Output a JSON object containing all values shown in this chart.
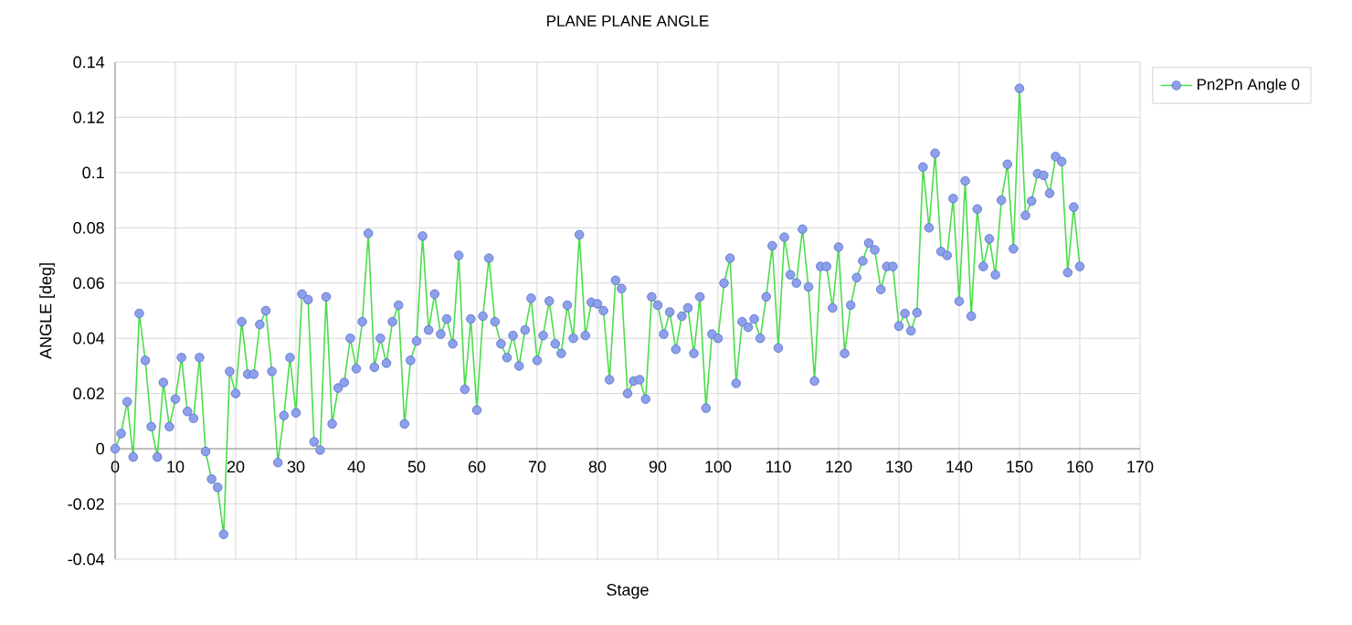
{
  "chart_data": {
    "type": "line",
    "title": "PLANE PLANE ANGLE",
    "xlabel": "Stage",
    "ylabel": "ANGLE [deg]",
    "x": [
      0,
      1,
      2,
      3,
      4,
      5,
      6,
      7,
      8,
      9,
      10,
      11,
      12,
      13,
      14,
      15,
      16,
      17,
      18,
      19,
      20,
      21,
      22,
      23,
      24,
      25,
      26,
      27,
      28,
      29,
      30,
      31,
      32,
      33,
      34,
      35,
      36,
      37,
      38,
      39,
      40,
      41,
      42,
      43,
      44,
      45,
      46,
      47,
      48,
      49,
      50,
      51,
      52,
      53,
      54,
      55,
      56,
      57,
      58,
      59,
      60,
      61,
      62,
      63,
      64,
      65,
      66,
      67,
      68,
      69,
      70,
      71,
      72,
      73,
      74,
      75,
      76,
      77,
      78,
      79,
      80,
      81,
      82,
      83,
      84,
      85,
      86,
      87,
      88,
      89,
      90,
      91,
      92,
      93,
      94,
      95,
      96,
      97,
      98,
      99,
      100,
      101,
      102,
      103,
      104,
      105,
      106,
      107,
      108,
      109,
      110,
      111,
      112,
      113,
      114,
      115,
      116,
      117,
      118,
      119,
      120,
      121,
      122,
      123,
      124,
      125,
      126,
      127,
      128,
      129,
      130,
      131,
      132,
      133,
      134,
      135,
      136,
      137,
      138,
      139,
      140,
      141,
      142,
      143,
      144,
      145,
      146,
      147,
      148,
      149,
      150,
      151,
      152,
      153,
      154,
      155,
      156,
      157,
      158,
      159,
      160
    ],
    "series": [
      {
        "name": "Pn2Pn Angle 0",
        "color": "#4cdc4c",
        "values": [
          0,
          0.0055,
          0.017,
          -0.003,
          0.049,
          0.032,
          0.008,
          -0.003,
          0.024,
          0.008,
          0.018,
          0.033,
          0.0135,
          0.011,
          0.033,
          -0.001,
          -0.011,
          -0.014,
          -0.031,
          0.028,
          0.02,
          0.046,
          0.027,
          0.027,
          0.045,
          0.05,
          0.028,
          -0.005,
          0.012,
          0.033,
          0.013,
          0.056,
          0.054,
          0.0025,
          -0.0005,
          0.055,
          0.009,
          0.022,
          0.024,
          0.04,
          0.029,
          0.046,
          0.078,
          0.0295,
          0.04,
          0.031,
          0.046,
          0.052,
          0.009,
          0.032,
          0.039,
          0.077,
          0.043,
          0.056,
          0.0415,
          0.047,
          0.038,
          0.07,
          0.0215,
          0.047,
          0.014,
          0.048,
          0.069,
          0.046,
          0.038,
          0.033,
          0.041,
          0.03,
          0.043,
          0.0545,
          0.032,
          0.041,
          0.0535,
          0.038,
          0.0345,
          0.052,
          0.04,
          0.0775,
          0.041,
          0.053,
          0.0525,
          0.05,
          0.025,
          0.061,
          0.058,
          0.02,
          0.0245,
          0.025,
          0.018,
          0.055,
          0.052,
          0.0415,
          0.0495,
          0.036,
          0.048,
          0.051,
          0.0345,
          0.055,
          0.0147,
          0.0415,
          0.04,
          0.06,
          0.069,
          0.0237,
          0.046,
          0.044,
          0.047,
          0.04,
          0.055,
          0.0735,
          0.0365,
          0.0766,
          0.063,
          0.06,
          0.0795,
          0.0586,
          0.0245,
          0.066,
          0.066,
          0.051,
          0.073,
          0.0345,
          0.052,
          0.062,
          0.068,
          0.0745,
          0.072,
          0.0577,
          0.066,
          0.066,
          0.0444,
          0.049,
          0.0427,
          0.0493,
          0.102,
          0.08,
          0.107,
          0.0714,
          0.07,
          0.0906,
          0.0534,
          0.097,
          0.048,
          0.0868,
          0.066,
          0.076,
          0.063,
          0.09,
          0.103,
          0.0724,
          0.1305,
          0.0845,
          0.0897,
          0.0996,
          0.099,
          0.0925,
          0.1058,
          0.104,
          0.0638,
          0.0875,
          0.066
        ]
      }
    ],
    "xlim": [
      0,
      170
    ],
    "xticks": [
      0,
      10,
      20,
      30,
      40,
      50,
      60,
      70,
      80,
      90,
      100,
      110,
      120,
      130,
      140,
      150,
      160,
      170
    ],
    "ylim": [
      -0.04,
      0.14
    ],
    "yticks": [
      -0.04,
      -0.02,
      0,
      0.02,
      0.04,
      0.06,
      0.08,
      0.1,
      0.12,
      0.14
    ],
    "grid": true,
    "legend": "top right",
    "marker": "circle",
    "line_style": "solid"
  }
}
